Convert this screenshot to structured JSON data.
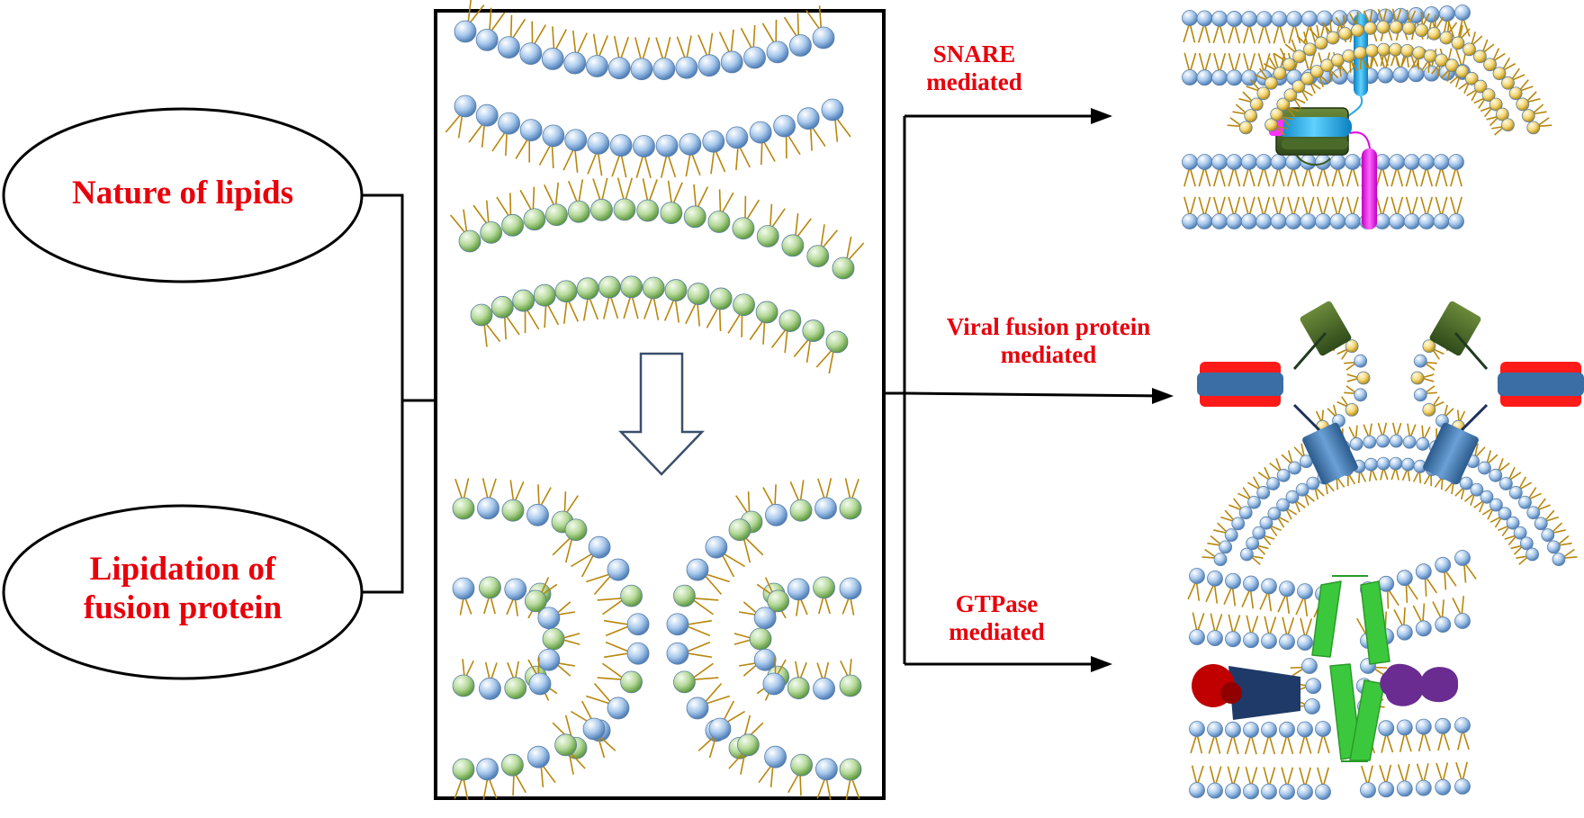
{
  "left": {
    "nature_label": "Nature of lipids",
    "lipidation_line1": "Lipidation of",
    "lipidation_line2": "fusion protein"
  },
  "right": {
    "snare_line1": "SNARE",
    "snare_line2": "mediated",
    "viral_line1": "Viral fusion protein",
    "viral_line2": "mediated",
    "gtpase_line1": "GTPase",
    "gtpase_line2": "mediated"
  },
  "colors": {
    "label_red": "#e8000b",
    "line_black": "#000000",
    "head_blue": "#9cc3ea",
    "head_green": "#a8d08d",
    "head_yellow": "#f2d36b",
    "tail_gold": "#b8860b",
    "snare_cyan": "#27a9e1",
    "snare_magenta": "#ff00ff",
    "viral_red": "#ff1a1a",
    "viral_blue": "#3a6ea5",
    "gtpase_green": "#3cc83c",
    "gtpase_purple": "#6a2c91",
    "gtpase_navy": "#1f3a68",
    "gtpase_red": "#c00000"
  }
}
